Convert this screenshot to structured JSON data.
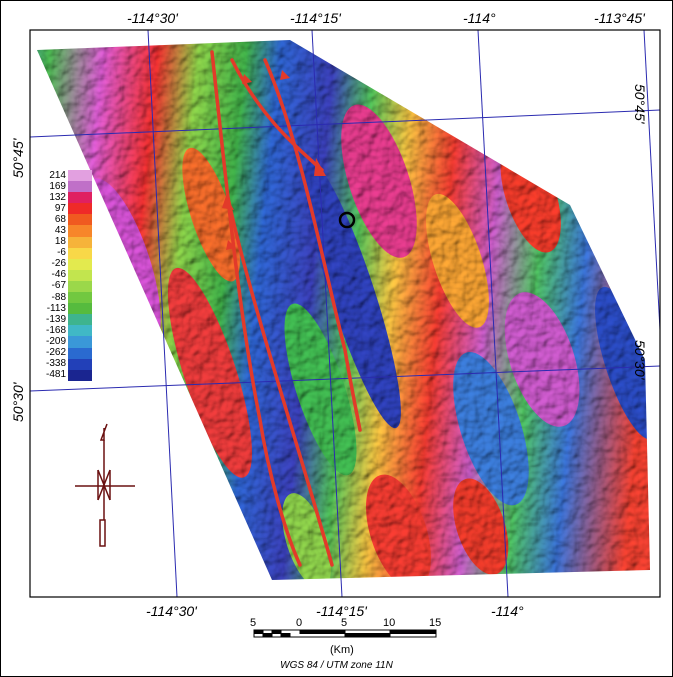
{
  "map": {
    "graticule": {
      "top_lon_labels": [
        "-114°30'",
        "-114°15'",
        "-114°",
        "-113°45'"
      ],
      "bottom_lon_labels": [
        "-114°30'",
        "-114°15'",
        "-114°"
      ],
      "left_lat_labels": [
        "50°45'",
        "50°30'"
      ],
      "right_lat_labels": [
        "50°45'",
        "50°30'"
      ]
    },
    "legend": {
      "values": [
        "214",
        "169",
        "132",
        "97",
        "68",
        "43",
        "18",
        "-6",
        "-26",
        "-46",
        "-67",
        "-88",
        "-113",
        "-139",
        "-168",
        "-209",
        "-262",
        "-338",
        "-481"
      ],
      "colors": [
        "#e2a0e0",
        "#c070c8",
        "#e02060",
        "#ef2a28",
        "#f05a20",
        "#f7862a",
        "#f6b33a",
        "#f8d848",
        "#e3ea4e",
        "#c2e54e",
        "#9bd84a",
        "#72c840",
        "#56bb3e",
        "#3eb48e",
        "#40b8c6",
        "#3a98d8",
        "#2a6ad0",
        "#2240b8",
        "#1a2590"
      ]
    },
    "scale_bar": {
      "ticks": [
        "5",
        "0",
        "5",
        "10",
        "15"
      ],
      "unit": "(Km)"
    },
    "datum_text": "WGS 84 / UTM zone 11N",
    "north_arrow_label": "N",
    "well_marker": "circle",
    "fault_color": "#e23a2a"
  }
}
